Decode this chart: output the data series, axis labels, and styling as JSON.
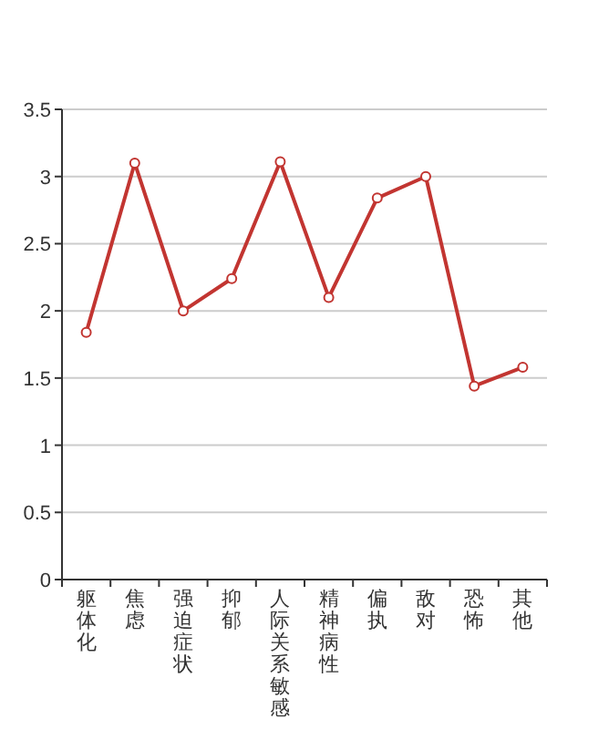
{
  "chart_data": {
    "type": "line",
    "categories": [
      "躯体化",
      "焦虑",
      "强迫症状",
      "抑郁",
      "人际关系敏感",
      "精神病性",
      "偏执",
      "敌对",
      "恐怖",
      "其他"
    ],
    "series": [
      {
        "color": "#c23531",
        "values": [
          1.84,
          3.1,
          2.0,
          2.24,
          3.11,
          2.1,
          2.84,
          3.0,
          1.44,
          1.58
        ]
      }
    ],
    "ylim": [
      0,
      3.5
    ],
    "yticks": [
      0,
      {
        "value": 0.5,
        "label": "0.5"
      },
      1,
      {
        "value": 1.5,
        "label": "1.5"
      },
      2,
      {
        "value": 2.5,
        "label": "2.5"
      },
      3,
      {
        "value": 3.5,
        "label": "3.5"
      }
    ],
    "grid": "y",
    "marker": "circle"
  }
}
